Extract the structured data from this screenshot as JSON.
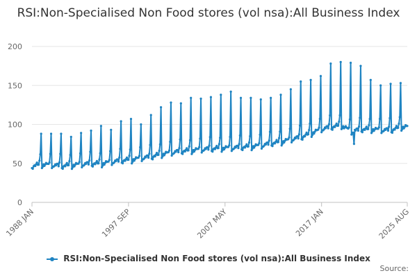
{
  "chart_data": {
    "type": "line",
    "title": "RSI:Non-Specialised Non Food stores (vol nsa):All Business Index",
    "xlabel": "",
    "ylabel": "",
    "x_range": [
      "1988 JAN",
      "2025 AUG"
    ],
    "ylim": [
      0,
      200
    ],
    "y_ticks": [
      0,
      50,
      100,
      150,
      200
    ],
    "x_ticks": [
      "1988 JAN",
      "1997 SEP",
      "2007 MAY",
      "2017 JAN",
      "2025 AUG"
    ],
    "grid": "horizontal",
    "legend_position": "bottom",
    "color": "#1f84c2",
    "series": [
      {
        "name": "RSI:Non-Specialised Non Food stores (vol nsa):All Business Index",
        "frequency": "monthly",
        "annual_values": [
          {
            "year": 1988,
            "baseline": 46,
            "dec_peak": 88
          },
          {
            "year": 1989,
            "baseline": 48,
            "dec_peak": 88
          },
          {
            "year": 1990,
            "baseline": 47,
            "dec_peak": 88
          },
          {
            "year": 1991,
            "baseline": 46,
            "dec_peak": 84
          },
          {
            "year": 1992,
            "baseline": 47,
            "dec_peak": 89
          },
          {
            "year": 1993,
            "baseline": 48,
            "dec_peak": 92
          },
          {
            "year": 1994,
            "baseline": 49,
            "dec_peak": 98
          },
          {
            "year": 1995,
            "baseline": 49,
            "dec_peak": 93
          },
          {
            "year": 1996,
            "baseline": 51,
            "dec_peak": 104
          },
          {
            "year": 1997,
            "baseline": 53,
            "dec_peak": 107
          },
          {
            "year": 1998,
            "baseline": 54,
            "dec_peak": 100
          },
          {
            "year": 1999,
            "baseline": 56,
            "dec_peak": 112
          },
          {
            "year": 2000,
            "baseline": 58,
            "dec_peak": 122
          },
          {
            "year": 2001,
            "baseline": 61,
            "dec_peak": 128
          },
          {
            "year": 2002,
            "baseline": 63,
            "dec_peak": 127
          },
          {
            "year": 2003,
            "baseline": 65,
            "dec_peak": 134
          },
          {
            "year": 2004,
            "baseline": 66,
            "dec_peak": 133
          },
          {
            "year": 2005,
            "baseline": 67,
            "dec_peak": 135
          },
          {
            "year": 2006,
            "baseline": 68,
            "dec_peak": 138
          },
          {
            "year": 2007,
            "baseline": 69,
            "dec_peak": 142
          },
          {
            "year": 2008,
            "baseline": 69,
            "dec_peak": 134
          },
          {
            "year": 2009,
            "baseline": 70,
            "dec_peak": 134
          },
          {
            "year": 2010,
            "baseline": 71,
            "dec_peak": 132
          },
          {
            "year": 2011,
            "baseline": 72,
            "dec_peak": 134
          },
          {
            "year": 2012,
            "baseline": 75,
            "dec_peak": 138
          },
          {
            "year": 2013,
            "baseline": 77,
            "dec_peak": 145
          },
          {
            "year": 2014,
            "baseline": 80,
            "dec_peak": 155
          },
          {
            "year": 2015,
            "baseline": 83,
            "dec_peak": 157
          },
          {
            "year": 2016,
            "baseline": 88,
            "dec_peak": 162
          },
          {
            "year": 2017,
            "baseline": 93,
            "dec_peak": 178
          },
          {
            "year": 2018,
            "baseline": 96,
            "dec_peak": 180
          },
          {
            "year": 2019,
            "baseline": 98,
            "dec_peak": 179
          },
          {
            "year": 2020,
            "baseline": 90,
            "dec_peak": 175
          },
          {
            "year": 2021,
            "baseline": 93,
            "dec_peak": 157
          },
          {
            "year": 2022,
            "baseline": 93,
            "dec_peak": 150
          },
          {
            "year": 2023,
            "baseline": 92,
            "dec_peak": 152
          },
          {
            "year": 2024,
            "baseline": 92,
            "dec_peak": 153
          },
          {
            "year": 2025,
            "baseline": 96,
            "dec_peak": null
          }
        ],
        "events": [
          {
            "date": "2020 APR",
            "value": 75
          },
          {
            "date": "2025 AUG",
            "value": 98
          }
        ]
      }
    ]
  },
  "source_label": "Source:"
}
